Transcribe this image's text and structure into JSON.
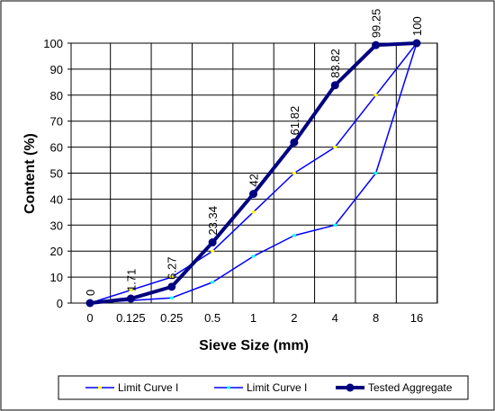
{
  "chart_data": {
    "type": "line",
    "categories": [
      "0",
      "0.125",
      "0.25",
      "0.5",
      "1",
      "2",
      "4",
      "8",
      "16"
    ],
    "xlabel": "Sieve Size (mm)",
    "ylabel": "Content (%)",
    "ylim": [
      0,
      100
    ],
    "yticks": [
      0,
      10,
      20,
      30,
      40,
      50,
      60,
      70,
      80,
      90,
      100
    ],
    "grid": true,
    "legend_position": "bottom",
    "series": [
      {
        "name": "Limit Curve I",
        "color": "#0000ff",
        "marker_color": "#ffff00",
        "values": [
          0,
          5,
          10,
          20,
          35,
          50,
          60,
          80,
          100
        ]
      },
      {
        "name": "Limit Curve I",
        "color": "#0000ff",
        "marker_color": "#00ffff",
        "values": [
          0,
          1,
          2,
          8,
          18,
          26,
          30,
          50,
          100
        ]
      },
      {
        "name": "Tested Aggregate",
        "color": "#000080",
        "marker_color": "#000080",
        "values": [
          0,
          1.71,
          6.27,
          23.34,
          42,
          61.82,
          83.82,
          99.25,
          100
        ],
        "data_labels": [
          "0",
          "1.71",
          "6.27",
          "23.34",
          "42",
          "61.82",
          "83.82",
          "99.25",
          "100"
        ]
      }
    ]
  }
}
